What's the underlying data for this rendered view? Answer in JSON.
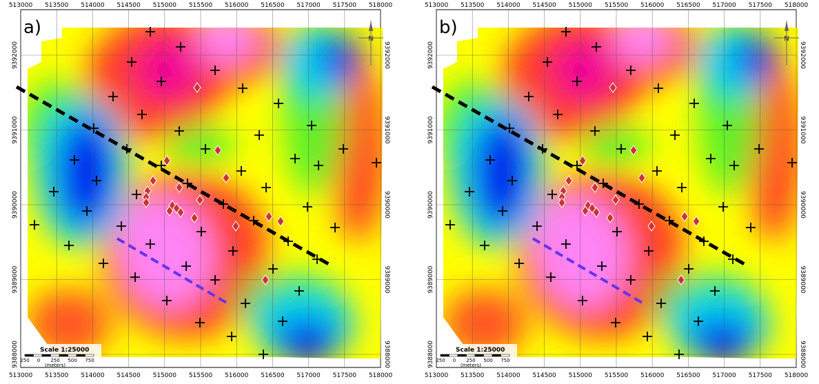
{
  "panels": [
    {
      "id": "a",
      "label": "a)"
    },
    {
      "id": "b",
      "label": "b)"
    }
  ],
  "axes": {
    "x_ticks": [
      "513000",
      "513500",
      "514000",
      "514500",
      "515000",
      "515500",
      "516000",
      "516500",
      "517000",
      "517500",
      "518000"
    ],
    "y_ticks": [
      "9392000",
      "9391000",
      "9390000",
      "9389000",
      "9388000"
    ]
  },
  "scale": {
    "text": "Scale 1:25000",
    "ticks": [
      "250",
      "0",
      "250",
      "500",
      "750"
    ],
    "units": "(meters)"
  },
  "north_arrow": {
    "letter": "N",
    "icon": "north-arrow-icon"
  },
  "colors": {
    "high": "#ff88ff",
    "mid_high": "#ff2a2a",
    "mid": "#ffff00",
    "mid_low": "#33ee33",
    "low": "#00ccff",
    "lowest": "#0000ee",
    "fault_line": "#000000",
    "dike_line": "#6633ee",
    "diamond_marker": "#cc3333",
    "cross_marker": "#000000"
  },
  "markers": {
    "cross_count": 48,
    "diamond_count": 24
  }
}
